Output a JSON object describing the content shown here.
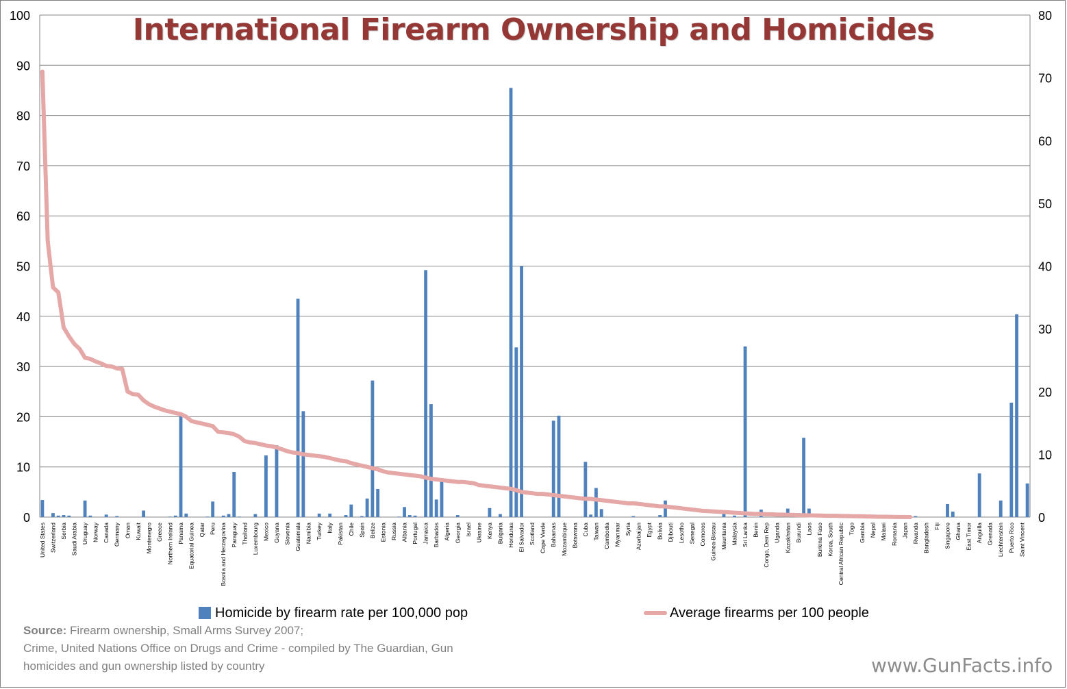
{
  "chart_data": {
    "type": "bar+line",
    "title": "International Firearm Ownership and Homicides",
    "y_left": {
      "min": 0,
      "max": 100,
      "ticks": [
        0,
        10,
        20,
        30,
        40,
        50,
        60,
        70,
        80,
        90,
        100
      ]
    },
    "y_right": {
      "min": 0,
      "max": 80,
      "ticks": [
        0,
        10,
        20,
        30,
        40,
        50,
        60,
        70,
        80
      ]
    },
    "grid": true,
    "legend_position": "bottom",
    "n_categories": 141,
    "labels": [
      {
        "i": 0,
        "name": "United States"
      },
      {
        "i": 2,
        "name": "Switzerland"
      },
      {
        "i": 4,
        "name": "Serbia"
      },
      {
        "i": 6,
        "name": "Saudi Arabia"
      },
      {
        "i": 8,
        "name": "Uruguay"
      },
      {
        "i": 10,
        "name": "Norway"
      },
      {
        "i": 12,
        "name": "Canada"
      },
      {
        "i": 14,
        "name": "Germany"
      },
      {
        "i": 16,
        "name": "Oman"
      },
      {
        "i": 18,
        "name": "Kuwait"
      },
      {
        "i": 20,
        "name": "Montenegro"
      },
      {
        "i": 22,
        "name": "Greece"
      },
      {
        "i": 24,
        "name": "Northern Ireland"
      },
      {
        "i": 26,
        "name": "Panama"
      },
      {
        "i": 28,
        "name": "Equatorial Guinea"
      },
      {
        "i": 30,
        "name": "Qatar"
      },
      {
        "i": 32,
        "name": "Peru"
      },
      {
        "i": 34,
        "name": "Bosnia and Herzegovina"
      },
      {
        "i": 36,
        "name": "Paraguay"
      },
      {
        "i": 38,
        "name": "Thailand"
      },
      {
        "i": 40,
        "name": "Luxembourg"
      },
      {
        "i": 42,
        "name": "Mexico"
      },
      {
        "i": 44,
        "name": "Guyana"
      },
      {
        "i": 46,
        "name": "Slovenia"
      },
      {
        "i": 48,
        "name": "Guatemala"
      },
      {
        "i": 50,
        "name": "Namibia"
      },
      {
        "i": 52,
        "name": "Turkey"
      },
      {
        "i": 54,
        "name": "Italy"
      },
      {
        "i": 56,
        "name": "Pakistan"
      },
      {
        "i": 58,
        "name": "Chile"
      },
      {
        "i": 60,
        "name": "Spain"
      },
      {
        "i": 62,
        "name": "Belize"
      },
      {
        "i": 64,
        "name": "Estonia"
      },
      {
        "i": 66,
        "name": "Russia"
      },
      {
        "i": 68,
        "name": "Albania"
      },
      {
        "i": 70,
        "name": "Portugal"
      },
      {
        "i": 72,
        "name": "Jamaica"
      },
      {
        "i": 74,
        "name": "Barbados"
      },
      {
        "i": 76,
        "name": "Algeria"
      },
      {
        "i": 78,
        "name": "Georgia"
      },
      {
        "i": 80,
        "name": "Israel"
      },
      {
        "i": 82,
        "name": "Ukraine"
      },
      {
        "i": 84,
        "name": "Kenya"
      },
      {
        "i": 86,
        "name": "Bulgaria"
      },
      {
        "i": 88,
        "name": "Honduras"
      },
      {
        "i": 90,
        "name": "El Salvador"
      },
      {
        "i": 92,
        "name": "Scotland"
      },
      {
        "i": 94,
        "name": "Cape Verde"
      },
      {
        "i": 96,
        "name": "Bahamas"
      },
      {
        "i": 98,
        "name": "Mozambique"
      },
      {
        "i": 100,
        "name": "Botswana"
      },
      {
        "i": 102,
        "name": "Cuba"
      },
      {
        "i": 104,
        "name": "Taiwan"
      },
      {
        "i": 106,
        "name": "Cambodia"
      },
      {
        "i": 108,
        "name": "Myanmar"
      },
      {
        "i": 110,
        "name": "Syria"
      },
      {
        "i": 112,
        "name": "Azerbaijan"
      },
      {
        "i": 114,
        "name": "Egypt"
      },
      {
        "i": 116,
        "name": "Bolivia"
      },
      {
        "i": 118,
        "name": "Djibouti"
      },
      {
        "i": 120,
        "name": "Lesotho"
      },
      {
        "i": 122,
        "name": "Senegal"
      },
      {
        "i": 124,
        "name": "Comoros"
      },
      {
        "i": 126,
        "name": "Guinea-Bissau"
      },
      {
        "i": 128,
        "name": "Mauritania"
      },
      {
        "i": 130,
        "name": "Malaysia"
      },
      {
        "i": 132,
        "name": "Sri Lanka"
      },
      {
        "i": 134,
        "name": "Benin"
      },
      {
        "i": 136,
        "name": "Congo, Dem Rep"
      },
      {
        "i": 138,
        "name": "Uganda"
      },
      {
        "i": 140,
        "name": "Kazakhstan"
      }
    ],
    "labels_more": [
      {
        "i": 142,
        "name": "Burundi"
      },
      {
        "i": 144,
        "name": "Laos"
      },
      {
        "i": 146,
        "name": "Burkina Faso"
      },
      {
        "i": 148,
        "name": "Korea, South"
      },
      {
        "i": 150,
        "name": "Central African Republic"
      },
      {
        "i": 152,
        "name": "Togo"
      },
      {
        "i": 154,
        "name": "Gambia"
      },
      {
        "i": 156,
        "name": "Nepal"
      },
      {
        "i": 158,
        "name": "Malawi"
      },
      {
        "i": 160,
        "name": "Romania"
      },
      {
        "i": 162,
        "name": "Japan"
      },
      {
        "i": 164,
        "name": "Rwanda"
      },
      {
        "i": 166,
        "name": "Bangladesh"
      },
      {
        "i": 168,
        "name": "Fiji"
      },
      {
        "i": 170,
        "name": "Singapore"
      },
      {
        "i": 172,
        "name": "Ghana"
      },
      {
        "i": 174,
        "name": "East Timor"
      },
      {
        "i": 176,
        "name": "Anguilla"
      },
      {
        "i": 178,
        "name": "Grenada"
      },
      {
        "i": 180,
        "name": "Liechtenstein"
      },
      {
        "i": 182,
        "name": "Puerto Rico"
      },
      {
        "i": 184,
        "name": "Saint Vincent"
      }
    ],
    "total_categories": 186,
    "bars": [
      {
        "i": 0,
        "v": 3.4
      },
      {
        "i": 2,
        "v": 0.8
      },
      {
        "i": 3,
        "v": 0.3
      },
      {
        "i": 4,
        "v": 0.4
      },
      {
        "i": 5,
        "v": 0.3
      },
      {
        "i": 8,
        "v": 3.3
      },
      {
        "i": 9,
        "v": 0.3
      },
      {
        "i": 12,
        "v": 0.5
      },
      {
        "i": 14,
        "v": 0.2
      },
      {
        "i": 19,
        "v": 1.3
      },
      {
        "i": 24,
        "v": 0.1
      },
      {
        "i": 25,
        "v": 0.3
      },
      {
        "i": 26,
        "v": 20.1
      },
      {
        "i": 27,
        "v": 0.7
      },
      {
        "i": 31,
        "v": 0.1
      },
      {
        "i": 32,
        "v": 3.1
      },
      {
        "i": 34,
        "v": 0.3
      },
      {
        "i": 35,
        "v": 0.6
      },
      {
        "i": 36,
        "v": 9.0
      },
      {
        "i": 37,
        "v": 0.1
      },
      {
        "i": 40,
        "v": 0.6
      },
      {
        "i": 42,
        "v": 12.3
      },
      {
        "i": 44,
        "v": 14.3
      },
      {
        "i": 48,
        "v": 43.5
      },
      {
        "i": 49,
        "v": 21.1
      },
      {
        "i": 52,
        "v": 0.7
      },
      {
        "i": 54,
        "v": 0.7
      },
      {
        "i": 57,
        "v": 0.4
      },
      {
        "i": 58,
        "v": 2.5
      },
      {
        "i": 60,
        "v": 0.2
      },
      {
        "i": 61,
        "v": 3.7
      },
      {
        "i": 62,
        "v": 27.2
      },
      {
        "i": 63,
        "v": 5.6
      },
      {
        "i": 67,
        "v": 0.1
      },
      {
        "i": 68,
        "v": 2.0
      },
      {
        "i": 69,
        "v": 0.4
      },
      {
        "i": 70,
        "v": 0.3
      },
      {
        "i": 72,
        "v": 49.2
      },
      {
        "i": 73,
        "v": 22.5
      },
      {
        "i": 74,
        "v": 3.5
      },
      {
        "i": 75,
        "v": 7.2
      },
      {
        "i": 78,
        "v": 0.4
      },
      {
        "i": 84,
        "v": 1.8
      },
      {
        "i": 86,
        "v": 0.6
      },
      {
        "i": 88,
        "v": 85.5
      },
      {
        "i": 89,
        "v": 33.8
      },
      {
        "i": 90,
        "v": 50.0
      },
      {
        "i": 96,
        "v": 19.2
      },
      {
        "i": 97,
        "v": 20.2
      },
      {
        "i": 102,
        "v": 11.0
      },
      {
        "i": 103,
        "v": 0.5
      },
      {
        "i": 104,
        "v": 5.8
      },
      {
        "i": 105,
        "v": 1.6
      },
      {
        "i": 111,
        "v": 0.2
      },
      {
        "i": 116,
        "v": 0.4
      },
      {
        "i": 117,
        "v": 3.3
      },
      {
        "i": 128,
        "v": 1.0
      },
      {
        "i": 130,
        "v": 0.3
      },
      {
        "i": 132,
        "v": 34.0
      },
      {
        "i": 135,
        "v": 1.5
      },
      {
        "i": 140,
        "v": 1.7
      },
      {
        "i": 142,
        "v": 0.8
      },
      {
        "i": 143,
        "v": 15.8
      },
      {
        "i": 144,
        "v": 1.7
      },
      {
        "i": 164,
        "v": 0.2
      },
      {
        "i": 170,
        "v": 2.6
      },
      {
        "i": 171,
        "v": 1.1
      },
      {
        "i": 176,
        "v": 8.7
      },
      {
        "i": 180,
        "v": 3.3
      },
      {
        "i": 182,
        "v": 22.8
      },
      {
        "i": 183,
        "v": 40.4
      },
      {
        "i": 185,
        "v": 6.7
      }
    ],
    "line": [
      [
        0,
        71
      ],
      [
        1,
        44
      ],
      [
        2,
        36.6
      ],
      [
        3,
        35.8
      ],
      [
        4,
        30.2
      ],
      [
        5,
        28.8
      ],
      [
        6,
        27.6
      ],
      [
        7,
        26.8
      ],
      [
        8,
        25.4
      ],
      [
        9,
        25.2
      ],
      [
        10,
        24.8
      ],
      [
        11,
        24.5
      ],
      [
        12,
        24.1
      ],
      [
        13,
        24.0
      ],
      [
        14,
        23.7
      ],
      [
        15,
        23.6
      ],
      [
        16,
        20.0
      ],
      [
        17,
        19.6
      ],
      [
        18,
        19.5
      ],
      [
        19,
        18.6
      ],
      [
        20,
        18.0
      ],
      [
        21,
        17.6
      ],
      [
        22,
        17.3
      ],
      [
        23,
        17.0
      ],
      [
        24,
        16.8
      ],
      [
        25,
        16.6
      ],
      [
        26,
        16.4
      ],
      [
        27,
        16.0
      ],
      [
        28,
        15.3
      ],
      [
        29,
        15.1
      ],
      [
        30,
        14.9
      ],
      [
        31,
        14.7
      ],
      [
        32,
        14.5
      ],
      [
        33,
        13.6
      ],
      [
        34,
        13.5
      ],
      [
        35,
        13.4
      ],
      [
        36,
        13.2
      ],
      [
        37,
        12.8
      ],
      [
        38,
        12.1
      ],
      [
        39,
        11.9
      ],
      [
        40,
        11.8
      ],
      [
        41,
        11.6
      ],
      [
        42,
        11.4
      ],
      [
        43,
        11.3
      ],
      [
        44,
        11.1
      ],
      [
        45,
        10.8
      ],
      [
        46,
        10.5
      ],
      [
        47,
        10.3
      ],
      [
        48,
        10.2
      ],
      [
        49,
        10.0
      ],
      [
        50,
        9.9
      ],
      [
        51,
        9.8
      ],
      [
        52,
        9.7
      ],
      [
        53,
        9.6
      ],
      [
        54,
        9.4
      ],
      [
        55,
        9.2
      ],
      [
        56,
        9.0
      ],
      [
        57,
        8.9
      ],
      [
        58,
        8.6
      ],
      [
        59,
        8.4
      ],
      [
        60,
        8.2
      ],
      [
        61,
        8.0
      ],
      [
        62,
        7.8
      ],
      [
        63,
        7.6
      ],
      [
        64,
        7.3
      ],
      [
        65,
        7.1
      ],
      [
        66,
        7.0
      ],
      [
        67,
        6.9
      ],
      [
        68,
        6.8
      ],
      [
        69,
        6.7
      ],
      [
        70,
        6.6
      ],
      [
        71,
        6.5
      ],
      [
        72,
        6.3
      ],
      [
        73,
        6.1
      ],
      [
        74,
        6.0
      ],
      [
        75,
        5.9
      ],
      [
        76,
        5.8
      ],
      [
        77,
        5.7
      ],
      [
        78,
        5.6
      ],
      [
        79,
        5.6
      ],
      [
        80,
        5.5
      ],
      [
        81,
        5.4
      ],
      [
        82,
        5.1
      ],
      [
        83,
        5.0
      ],
      [
        84,
        4.9
      ],
      [
        85,
        4.8
      ],
      [
        86,
        4.7
      ],
      [
        87,
        4.6
      ],
      [
        88,
        4.5
      ],
      [
        89,
        4.3
      ],
      [
        90,
        4.0
      ],
      [
        91,
        3.9
      ],
      [
        92,
        3.8
      ],
      [
        93,
        3.7
      ],
      [
        94,
        3.7
      ],
      [
        95,
        3.6
      ],
      [
        96,
        3.5
      ],
      [
        97,
        3.4
      ],
      [
        98,
        3.3
      ],
      [
        99,
        3.2
      ],
      [
        100,
        3.1
      ],
      [
        101,
        3.0
      ],
      [
        102,
        2.9
      ],
      [
        103,
        2.9
      ],
      [
        104,
        2.8
      ],
      [
        105,
        2.7
      ],
      [
        106,
        2.6
      ],
      [
        107,
        2.5
      ],
      [
        108,
        2.4
      ],
      [
        109,
        2.3
      ],
      [
        110,
        2.2
      ],
      [
        111,
        2.2
      ],
      [
        112,
        2.1
      ],
      [
        113,
        2.0
      ],
      [
        114,
        1.9
      ],
      [
        115,
        1.8
      ],
      [
        116,
        1.7
      ],
      [
        117,
        1.7
      ],
      [
        118,
        1.6
      ],
      [
        119,
        1.5
      ],
      [
        120,
        1.4
      ],
      [
        121,
        1.3
      ],
      [
        122,
        1.2
      ],
      [
        123,
        1.1
      ],
      [
        124,
        1.0
      ],
      [
        125,
        0.95
      ],
      [
        126,
        0.9
      ],
      [
        127,
        0.85
      ],
      [
        128,
        0.8
      ],
      [
        129,
        0.75
      ],
      [
        130,
        0.7
      ],
      [
        131,
        0.65
      ],
      [
        132,
        0.6
      ],
      [
        133,
        0.55
      ],
      [
        134,
        0.5
      ],
      [
        135,
        0.5
      ],
      [
        136,
        0.45
      ],
      [
        137,
        0.45
      ],
      [
        138,
        0.4
      ],
      [
        139,
        0.4
      ],
      [
        140,
        0.35
      ],
      [
        141,
        0.35
      ],
      [
        142,
        0.3
      ],
      [
        143,
        0.3
      ],
      [
        144,
        0.28
      ],
      [
        145,
        0.26
      ],
      [
        146,
        0.24
      ],
      [
        147,
        0.22
      ],
      [
        148,
        0.2
      ],
      [
        149,
        0.2
      ],
      [
        150,
        0.18
      ],
      [
        151,
        0.16
      ],
      [
        152,
        0.15
      ],
      [
        153,
        0.14
      ],
      [
        154,
        0.12
      ],
      [
        155,
        0.1
      ],
      [
        156,
        0.08
      ],
      [
        157,
        0.06
      ],
      [
        158,
        0.05
      ],
      [
        159,
        0.04
      ],
      [
        160,
        0.03
      ],
      [
        161,
        0.02
      ],
      [
        162,
        0.01
      ],
      [
        163,
        0.0
      ]
    ],
    "legend": [
      {
        "label": "Homicide by firearm rate per 100,000 pop",
        "color": "#4f81bd"
      },
      {
        "label": "Average firearms per 100 people",
        "color": "#e6a7a7"
      }
    ],
    "colors": {
      "bar": "#4f81bd",
      "line": "#e6a7a7",
      "title": "#953735",
      "grid": "#868686"
    }
  },
  "source": {
    "label": "Source:",
    "line1": "Firearm ownership, Small Arms Survey 2007;",
    "line2": "Crime, United Nations Office on Drugs and Crime - compiled by The Guardian, Gun",
    "line3": "homicides and gun ownership listed by country"
  },
  "site": "www.GunFacts.info"
}
